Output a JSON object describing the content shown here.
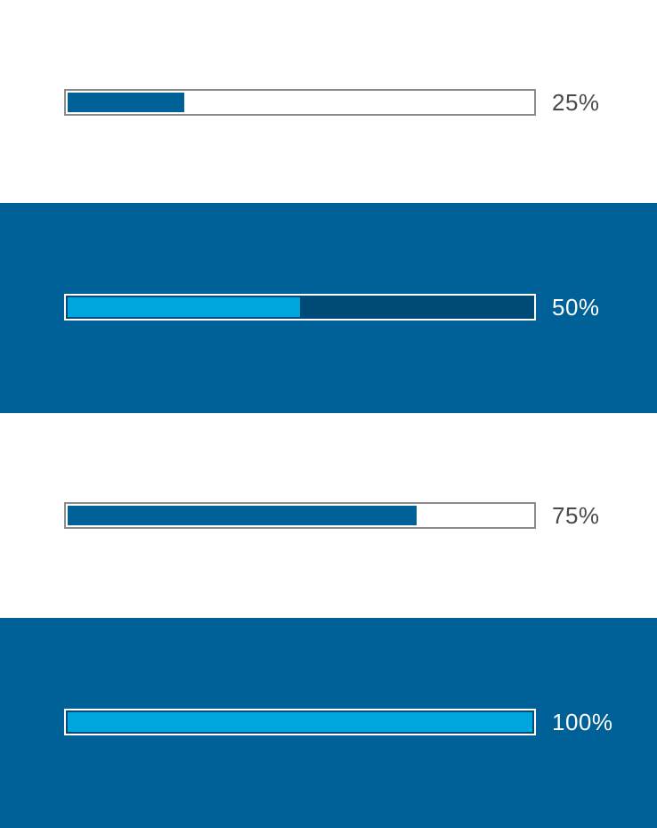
{
  "progress_bars": [
    {
      "label": "25%",
      "value": 0.25,
      "theme": "light"
    },
    {
      "label": "50%",
      "value": 0.5,
      "theme": "dark"
    },
    {
      "label": "75%",
      "value": 0.75,
      "theme": "light"
    },
    {
      "label": "100%",
      "value": 1.0,
      "theme": "dark"
    }
  ],
  "colors": {
    "brand_blue": "#006098",
    "accent_cyan": "#00a6e0",
    "dark_track": "#004a78",
    "light_border": "#8c8c8c",
    "text_gray": "#4a4a4a",
    "white": "#ffffff"
  }
}
